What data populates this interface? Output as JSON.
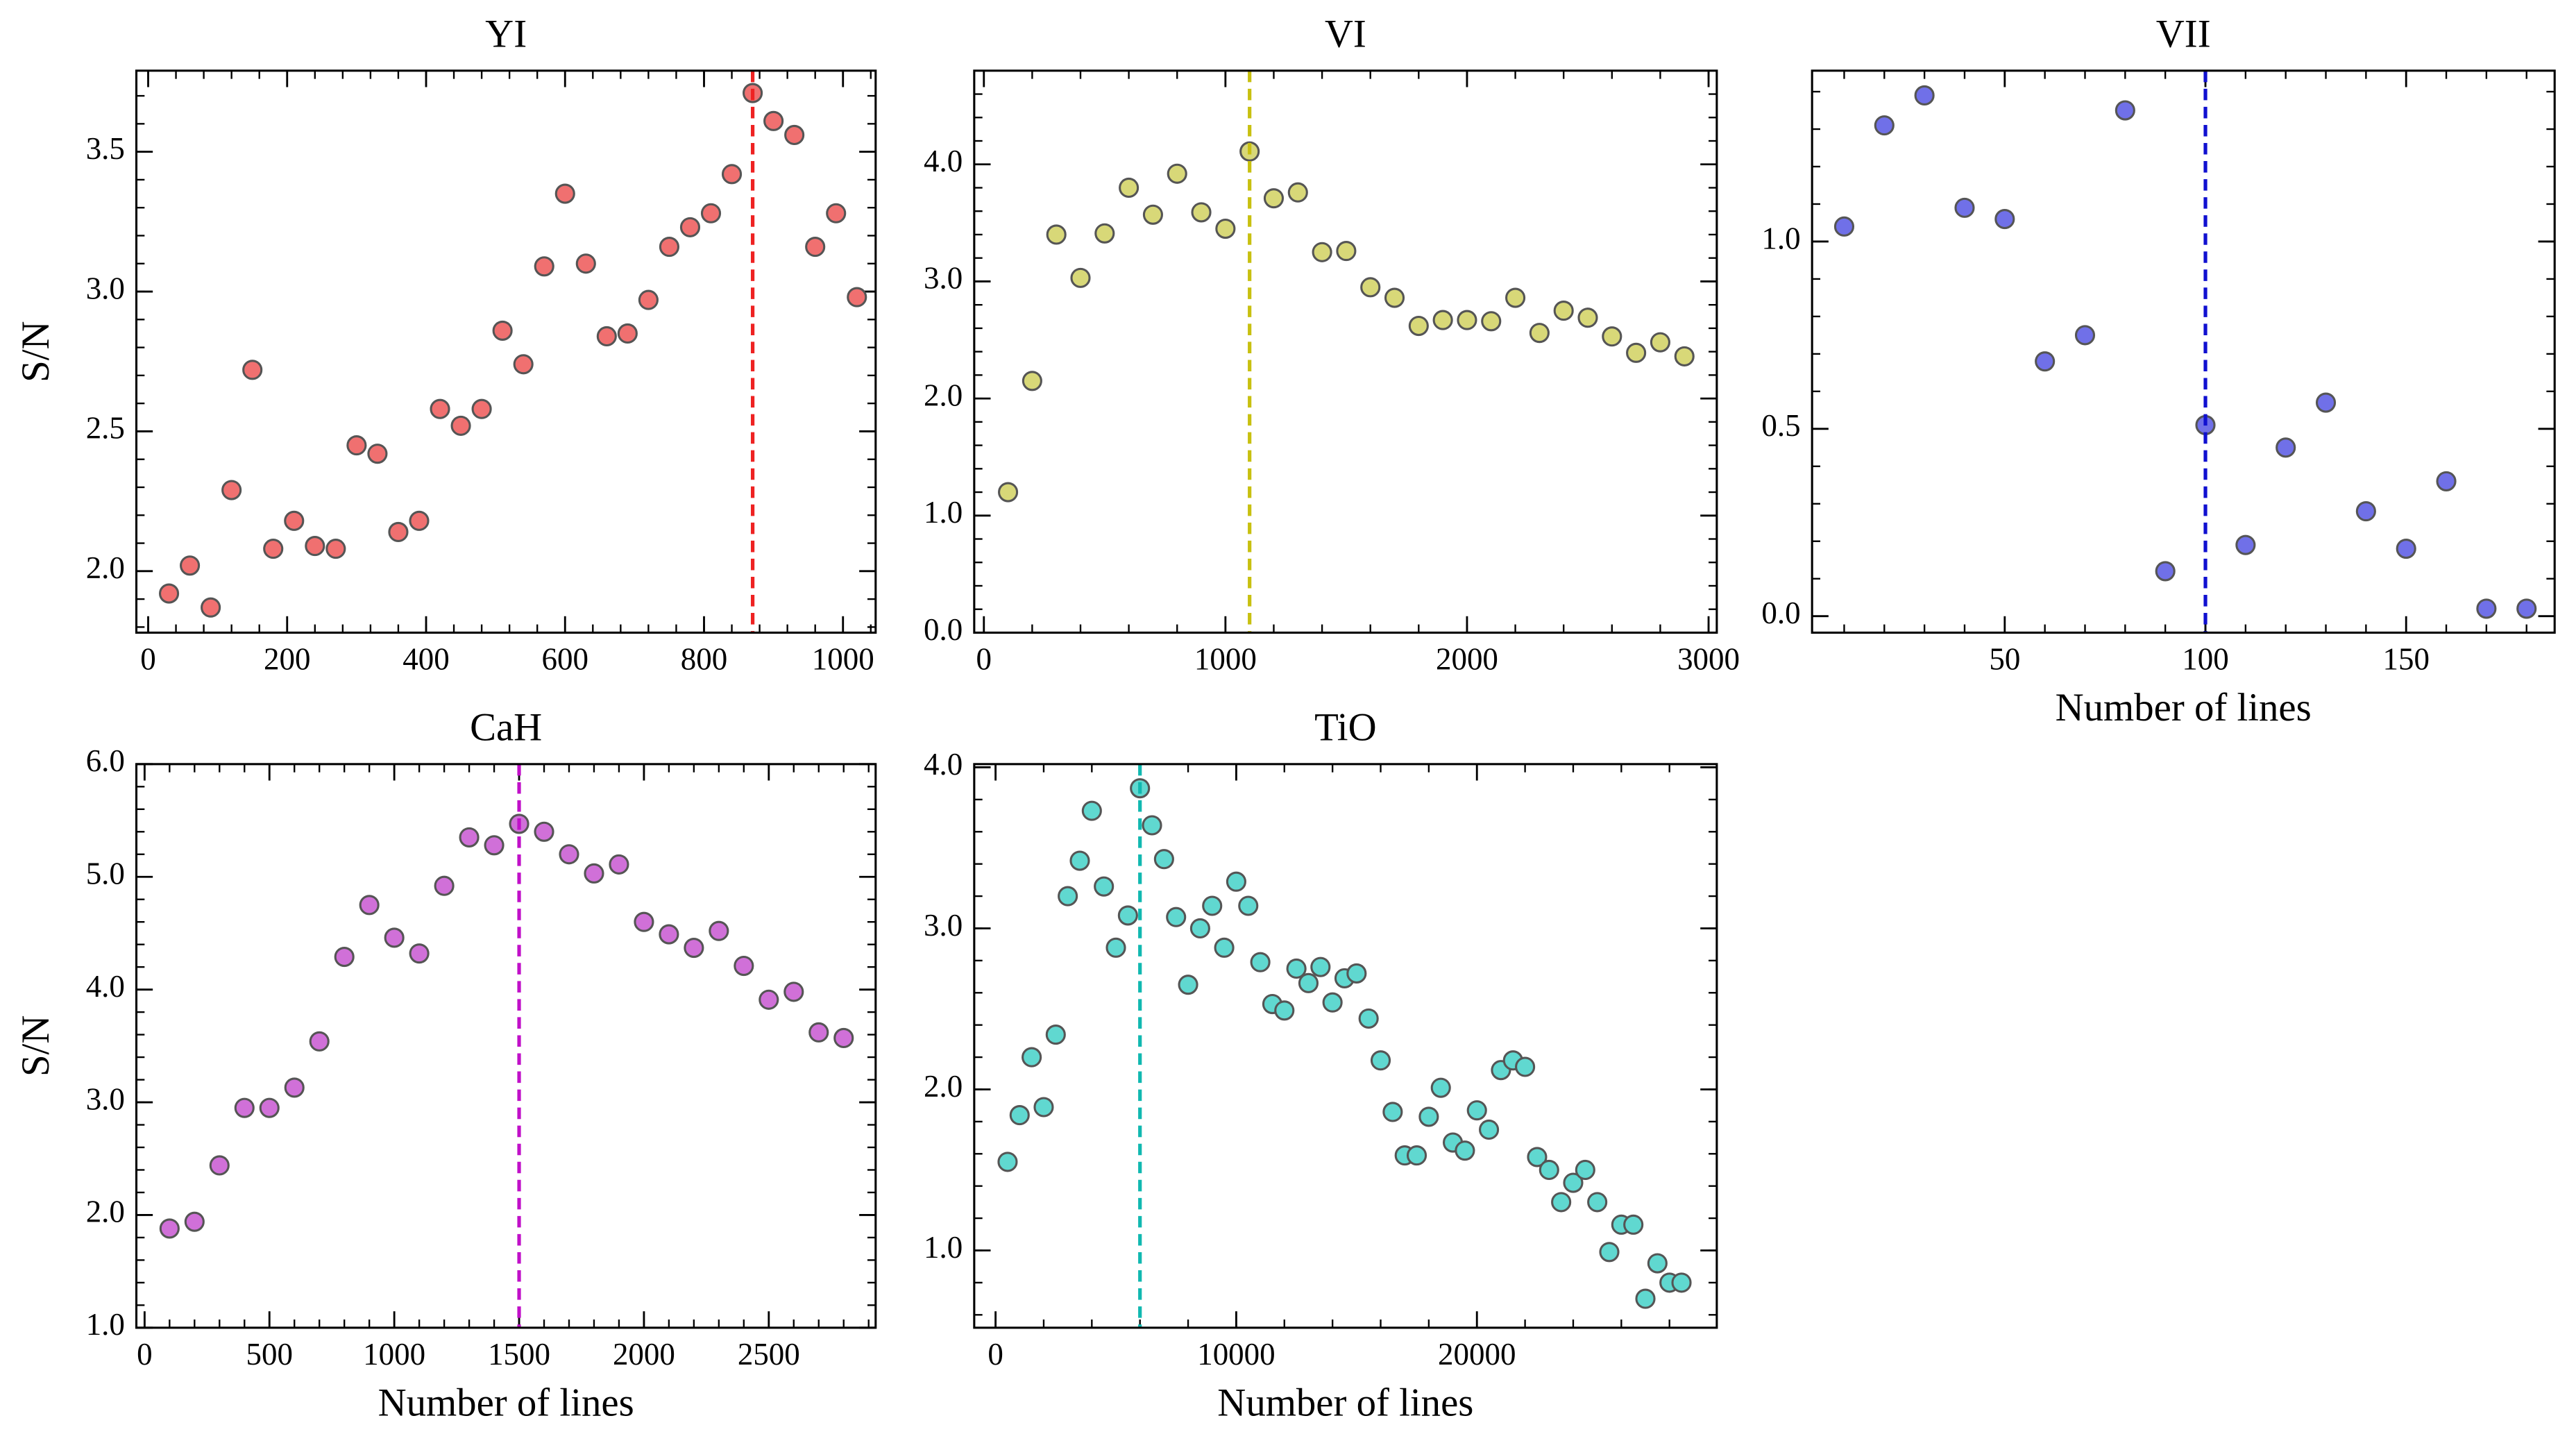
{
  "chart_data": [
    {
      "type": "scatter",
      "title": "YI",
      "ylabel": "S/N",
      "x": [
        30,
        60,
        90,
        120,
        150,
        180,
        210,
        240,
        270,
        300,
        330,
        360,
        390,
        420,
        450,
        480,
        510,
        540,
        570,
        600,
        630,
        660,
        690,
        720,
        750,
        780,
        810,
        840,
        870,
        900,
        930,
        960,
        990,
        1020
      ],
      "values": [
        1.92,
        2.02,
        1.87,
        2.29,
        2.72,
        2.08,
        2.18,
        2.09,
        2.08,
        2.45,
        2.42,
        2.14,
        2.18,
        2.58,
        2.52,
        2.58,
        2.86,
        2.74,
        3.09,
        3.35,
        3.1,
        2.84,
        2.85,
        2.97,
        3.16,
        3.23,
        3.28,
        3.42,
        3.71,
        3.61,
        3.56,
        3.16,
        3.28,
        2.98
      ],
      "color": "#f07070",
      "edge_color": "#555555",
      "vline": 870,
      "vline_color": "#ee2222",
      "xlim": [
        -17,
        1047
      ],
      "ylim": [
        1.78,
        3.79
      ],
      "xticks": [
        0,
        200,
        400,
        600,
        800,
        1000
      ],
      "yticks": [
        {
          "value": 2,
          "label": "2.0"
        },
        {
          "value": 2.5,
          "label": "2.5"
        },
        {
          "value": 3,
          "label": "3.0"
        },
        {
          "value": 3.5,
          "label": "3.5"
        }
      ]
    },
    {
      "type": "scatter",
      "title": "VI",
      "x": [
        100,
        200,
        300,
        400,
        500,
        600,
        700,
        800,
        900,
        1000,
        1100,
        1200,
        1300,
        1400,
        1500,
        1600,
        1700,
        1800,
        1900,
        2000,
        2100,
        2200,
        2300,
        2400,
        2500,
        2600,
        2700,
        2800,
        2900
      ],
      "values": [
        1.2,
        2.15,
        3.4,
        3.03,
        3.41,
        3.8,
        3.57,
        3.92,
        3.59,
        3.45,
        4.11,
        3.71,
        3.76,
        3.25,
        3.26,
        2.95,
        2.86,
        2.62,
        2.67,
        2.67,
        2.66,
        2.86,
        2.56,
        2.75,
        2.69,
        2.53,
        2.39,
        2.48,
        2.36
      ],
      "color": "#d8d878",
      "edge_color": "#555555",
      "vline": 1100,
      "vline_color": "#c8c010",
      "xlim": [
        -40,
        3034
      ],
      "ylim": [
        0,
        4.8
      ],
      "xticks": [
        0,
        1000,
        2000,
        3000
      ],
      "yticks": [
        {
          "value": 0,
          "label": "0.0"
        },
        {
          "value": 1,
          "label": "1.0"
        },
        {
          "value": 2,
          "label": "2.0"
        },
        {
          "value": 3,
          "label": "3.0"
        },
        {
          "value": 4,
          "label": "4.0"
        }
      ]
    },
    {
      "type": "scatter",
      "title": "VII",
      "xlabel": "Number of lines",
      "x": [
        10,
        20,
        30,
        40,
        50,
        60,
        70,
        80,
        90,
        100,
        110,
        120,
        130,
        140,
        150,
        160,
        170,
        180
      ],
      "values": [
        1.04,
        1.31,
        1.39,
        1.09,
        1.06,
        0.68,
        0.75,
        1.35,
        0.12,
        0.51,
        0.19,
        0.45,
        0.57,
        0.28,
        0.18,
        0.36,
        0.02,
        0.02
      ],
      "color": "#7070e8",
      "edge_color": "#555555",
      "vline": 100,
      "vline_color": "#1010d0",
      "xlim": [
        2,
        187
      ],
      "ylim": [
        -0.044,
        1.456
      ],
      "xticks": [
        50,
        100,
        150
      ],
      "yticks": [
        {
          "value": 0,
          "label": "0.0"
        },
        {
          "value": 0.5,
          "label": "0.5"
        },
        {
          "value": 1,
          "label": "1.0"
        }
      ]
    },
    {
      "type": "scatter",
      "title": "CaH",
      "ylabel": "S/N",
      "xlabel": "Number of lines",
      "x": [
        100,
        200,
        300,
        400,
        500,
        600,
        700,
        800,
        900,
        1000,
        1100,
        1200,
        1300,
        1400,
        1500,
        1600,
        1700,
        1800,
        1900,
        2000,
        2100,
        2200,
        2300,
        2400,
        2500,
        2600,
        2700,
        2800
      ],
      "values": [
        1.88,
        1.94,
        2.44,
        2.95,
        2.95,
        3.13,
        3.54,
        4.29,
        4.75,
        4.46,
        4.32,
        4.92,
        5.35,
        5.28,
        5.47,
        5.4,
        5.2,
        5.03,
        5.11,
        4.6,
        4.49,
        4.37,
        4.52,
        4.21,
        3.91,
        3.98,
        3.62,
        3.57
      ],
      "color": "#d070d8",
      "edge_color": "#555555",
      "vline": 1500,
      "vline_color": "#c010c8",
      "xlim": [
        -33,
        2928
      ],
      "ylim": [
        1,
        6
      ],
      "xticks": [
        0,
        500,
        1000,
        1500,
        2000,
        2500
      ],
      "yticks": [
        {
          "value": 1,
          "label": "1.0"
        },
        {
          "value": 2,
          "label": "2.0"
        },
        {
          "value": 3,
          "label": "3.0"
        },
        {
          "value": 4,
          "label": "4.0"
        },
        {
          "value": 5,
          "label": "5.0"
        },
        {
          "value": 6,
          "label": "6.0"
        }
      ]
    },
    {
      "type": "scatter",
      "title": "TiO",
      "xlabel": "Number of lines",
      "x": [
        500,
        1000,
        1500,
        2000,
        2500,
        3000,
        3500,
        4000,
        4500,
        5000,
        5500,
        6000,
        6500,
        7000,
        7500,
        8000,
        8500,
        9000,
        9500,
        10000,
        10500,
        11000,
        11500,
        12000,
        12500,
        13000,
        13500,
        14000,
        14500,
        15000,
        15500,
        16000,
        16500,
        17000,
        17500,
        18000,
        18500,
        19000,
        19500,
        20000,
        20500,
        21000,
        21500,
        22000,
        22500,
        23000,
        23500,
        24000,
        24500,
        25000,
        25500,
        26000,
        26500,
        27000,
        27500,
        28000,
        28500
      ],
      "values": [
        1.55,
        1.84,
        2.2,
        1.89,
        2.34,
        3.2,
        3.42,
        3.73,
        3.26,
        2.88,
        3.08,
        3.87,
        3.64,
        3.43,
        3.07,
        2.65,
        3.0,
        3.14,
        2.88,
        3.29,
        3.14,
        2.79,
        2.53,
        2.49,
        2.75,
        2.66,
        2.76,
        2.54,
        2.69,
        2.72,
        2.44,
        2.18,
        1.86,
        1.59,
        1.59,
        1.83,
        2.01,
        1.67,
        1.62,
        1.87,
        1.75,
        2.12,
        2.18,
        2.14,
        1.58,
        1.5,
        1.3,
        1.42,
        1.5,
        1.3,
        0.99,
        1.16,
        1.16,
        0.7,
        0.92,
        0.8,
        0.8
      ],
      "color": "#60d8d0",
      "edge_color": "#555555",
      "vline": 6000,
      "vline_color": "#10b8b0",
      "xlim": [
        -887,
        29966
      ],
      "ylim": [
        0.52,
        4.02
      ],
      "xticks": [
        0,
        10000,
        20000
      ],
      "yticks": [
        {
          "value": 1,
          "label": "1.0"
        },
        {
          "value": 2,
          "label": "2.0"
        },
        {
          "value": 3,
          "label": "3.0"
        },
        {
          "value": 4,
          "label": "4.0"
        }
      ]
    }
  ]
}
